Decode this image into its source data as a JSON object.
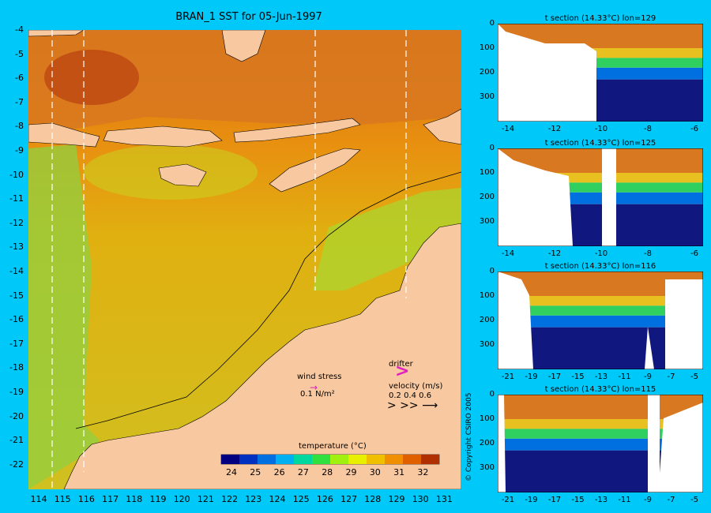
{
  "title": "BRAN_1 SST for 05-Jun-1997",
  "map": {
    "lat_labels": [
      "-4",
      "-5",
      "-6",
      "-7",
      "-8",
      "-9",
      "-10",
      "-11",
      "-12",
      "-13",
      "-14",
      "-15",
      "-16",
      "-17",
      "-18",
      "-19",
      "-20",
      "-21",
      "-22"
    ],
    "lon_labels": [
      "114",
      "115",
      "116",
      "117",
      "118",
      "119",
      "120",
      "121",
      "122",
      "123",
      "124",
      "125",
      "126",
      "127",
      "128",
      "129",
      "130",
      "131"
    ],
    "section_lons": [
      114.5,
      115.8,
      125.5,
      129.2
    ]
  },
  "colorbar": {
    "title": "temperature (°C)",
    "ticks": [
      "24",
      "25",
      "26",
      "27",
      "28",
      "29",
      "30",
      "31",
      "32"
    ],
    "colors": [
      "#000080",
      "#0030c0",
      "#0070e0",
      "#00b0f0",
      "#00d8a0",
      "#30e040",
      "#a0f010",
      "#e8f000",
      "#f0c000",
      "#f09000",
      "#e06000",
      "#b03000"
    ]
  },
  "legend": {
    "wind_label": "wind stress",
    "wind_value": "0.1 N/m²",
    "drifter_label": "drifter",
    "velocity_label": "velocity (m/s)",
    "velocity_values": "0.2 0.4 0.6"
  },
  "copyright": "© Copyright CSIRO 2005",
  "sections": [
    {
      "title": "t section (14.33°C) lon=129",
      "xticks": [
        "-14",
        "-12",
        "-10",
        "-8",
        "-6"
      ],
      "yticks": [
        "0",
        "100",
        "200",
        "300"
      ]
    },
    {
      "title": "t section (14.33°C) lon=125",
      "xticks": [
        "-14",
        "-12",
        "-10",
        "-8",
        "-6"
      ],
      "yticks": [
        "0",
        "100",
        "200",
        "300"
      ]
    },
    {
      "title": "t section (14.33°C) lon=116",
      "xticks": [
        "-21",
        "-19",
        "-17",
        "-15",
        "-13",
        "-11",
        "-9",
        "-7",
        "-5"
      ],
      "yticks": [
        "0",
        "100",
        "200",
        "300"
      ]
    },
    {
      "title": "t section (14.33°C) lon=115",
      "xticks": [
        "-21",
        "-19",
        "-17",
        "-15",
        "-13",
        "-11",
        "-9",
        "-7",
        "-5"
      ],
      "yticks": [
        "0",
        "100",
        "200",
        "300"
      ]
    }
  ]
}
